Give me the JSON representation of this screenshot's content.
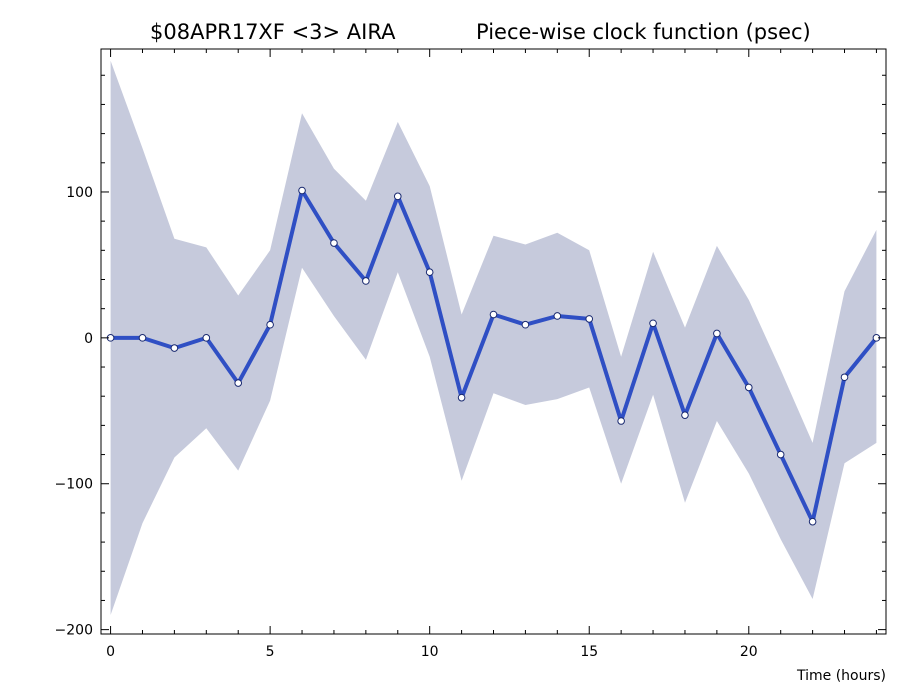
{
  "chart_data": {
    "type": "line",
    "title_left": "$08APR17XF <3>  AIRA",
    "title_right": "Piece-wise clock function (psec)",
    "xlabel": "Time (hours)",
    "ylabel": "",
    "xlim": [
      -0.3,
      24.3
    ],
    "ylim": [
      -203,
      198
    ],
    "x_ticks": [
      0,
      5,
      10,
      15,
      20
    ],
    "x_minor_step": 1,
    "y_ticks": [
      -200,
      -100,
      0,
      100
    ],
    "y_minor_step": 20,
    "grid": false,
    "line_color": "#2f4fc4",
    "band_color": "#c6cadc",
    "series": [
      {
        "x": [
          0,
          1,
          2,
          3,
          4,
          5,
          6,
          7,
          8,
          9,
          10,
          11,
          12,
          13,
          14,
          15,
          16,
          17,
          18,
          19,
          20,
          21,
          22,
          23,
          24
        ],
        "values": [
          0,
          0,
          -7,
          0,
          -31,
          9,
          101,
          65,
          39,
          97,
          45,
          -41,
          16,
          9,
          15,
          13,
          -57,
          10,
          -53,
          3,
          -34,
          -80,
          -126,
          -27,
          0
        ],
        "upper": [
          190,
          130,
          68,
          62,
          29,
          60,
          154,
          116,
          94,
          148,
          104,
          16,
          70,
          64,
          72,
          60,
          -13,
          59,
          7,
          63,
          26,
          -22,
          -72,
          32,
          74
        ],
        "lower": [
          -190,
          -127,
          -82,
          -62,
          -91,
          -43,
          48,
          15,
          -15,
          45,
          -13,
          -98,
          -38,
          -46,
          -42,
          -34,
          -100,
          -39,
          -113,
          -57,
          -93,
          -138,
          -179,
          -86,
          -72
        ]
      }
    ]
  }
}
